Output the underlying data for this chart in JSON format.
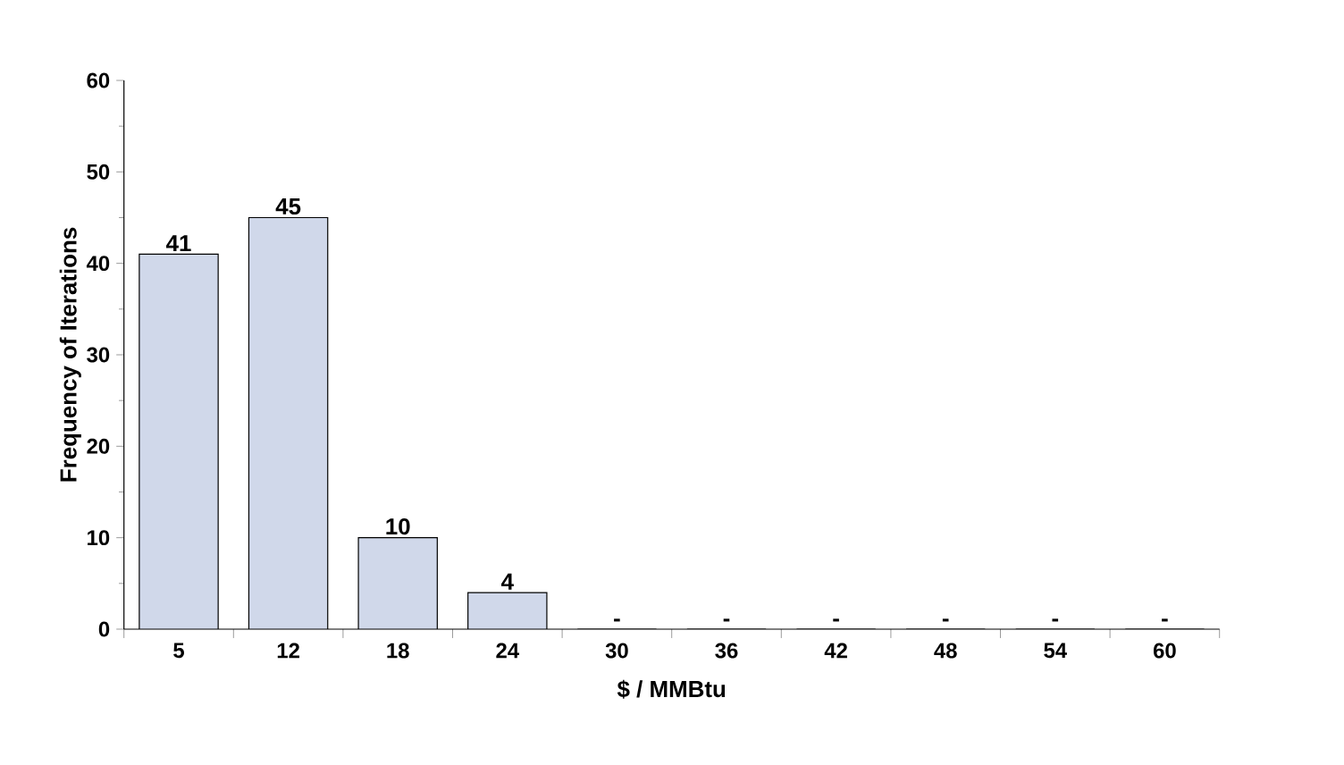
{
  "chart_data": {
    "type": "bar",
    "xlabel": "$ / MMBtu",
    "ylabel": "Frequency of Iterations",
    "categories": [
      "5",
      "12",
      "18",
      "24",
      "30",
      "36",
      "42",
      "48",
      "54",
      "60"
    ],
    "values": [
      41,
      45,
      10,
      4,
      0,
      0,
      0,
      0,
      0,
      0
    ],
    "value_labels": [
      "41",
      "45",
      "10",
      "4",
      "-",
      "-",
      "-",
      "-",
      "-",
      "-"
    ],
    "color": "#d0d8ea",
    "ylim": [
      0,
      60
    ],
    "yticks": [
      0,
      10,
      20,
      30,
      40,
      50,
      60
    ]
  }
}
